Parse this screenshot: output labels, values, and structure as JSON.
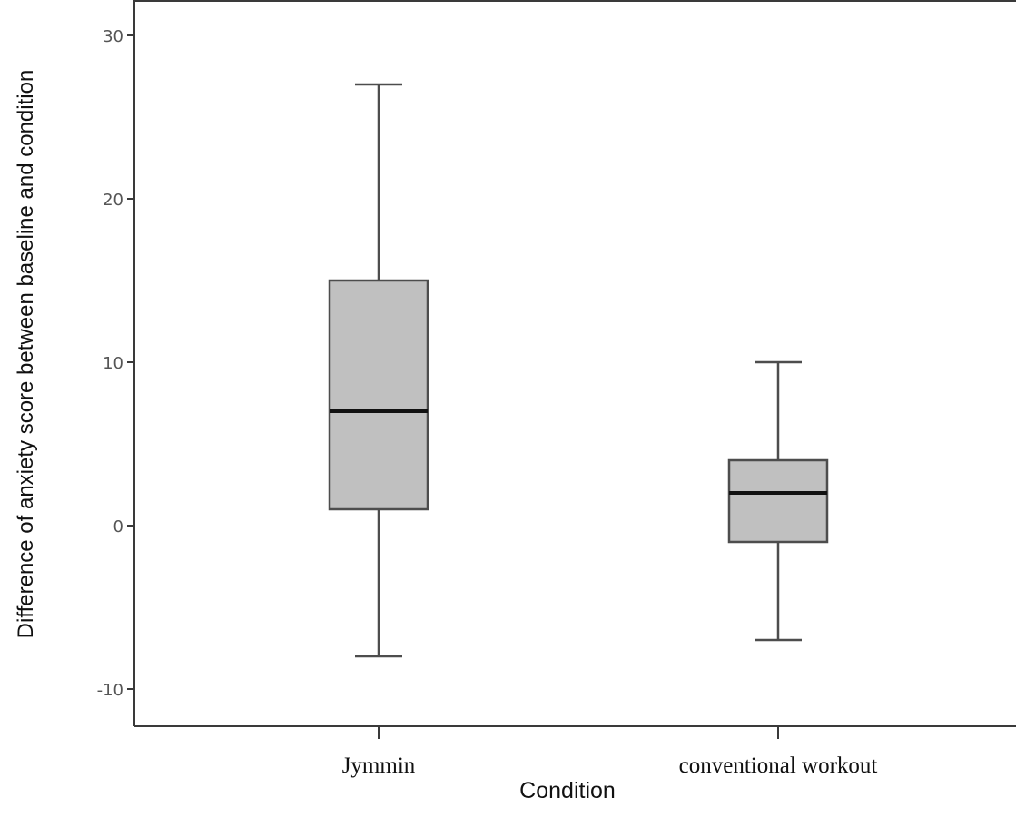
{
  "chart_data": {
    "type": "box",
    "title": "",
    "xlabel": "Condition",
    "ylabel": "Difference of anxiety score between baseline and condition",
    "ylim": [
      -12,
      32
    ],
    "yticks": [
      -10,
      0,
      10,
      20,
      30
    ],
    "ytick_labels": [
      "-10",
      "0",
      "10",
      "20",
      "30"
    ],
    "categories": [
      "Jymmin",
      "conventional workout"
    ],
    "boxes": [
      {
        "category": "Jymmin",
        "whisker_low": -8,
        "q1": 1,
        "median": 7,
        "q3": 15,
        "whisker_high": 27
      },
      {
        "category": "conventional workout",
        "whisker_low": -7,
        "q1": -1,
        "median": 2,
        "q3": 4,
        "whisker_high": 10
      }
    ],
    "grid": false,
    "colors": {
      "box_fill": "#c0c0c0",
      "box_stroke": "#4d4d4d",
      "median": "#111111",
      "axis": "#3a3a3a"
    }
  }
}
